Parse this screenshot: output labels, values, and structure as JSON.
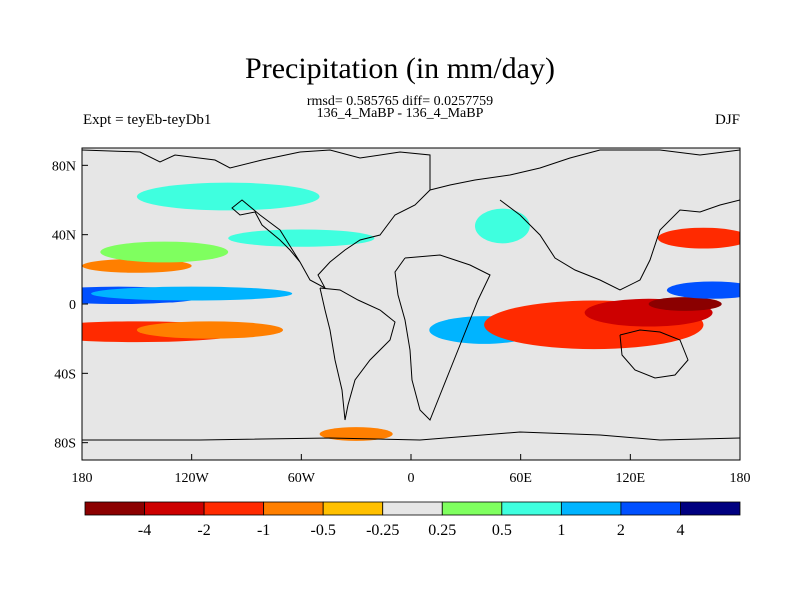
{
  "title": "Precipitation (in mm/day)",
  "stats": "rmsd= 0.585765 diff= 0.0257759",
  "comparison": "136_4_MaBP - 136_4_MaBP",
  "experiment": "Expt = teyEb-teyDb1",
  "season": "DJF",
  "colors": {
    "background_land": "#e6e6e6",
    "coast": "#000000"
  },
  "chart_data": {
    "type": "heatmap",
    "title": "Precipitation (in mm/day)",
    "x_ticks": [
      "180",
      "120W",
      "60W",
      "0",
      "60E",
      "120E",
      "180"
    ],
    "y_ticks": [
      "80N",
      "40N",
      "0",
      "40S",
      "80S"
    ],
    "x_range": [
      -180,
      180
    ],
    "y_range": [
      -90,
      90
    ],
    "colorbar": {
      "levels": [
        "-4",
        "-2",
        "-1",
        "-0.5",
        "-0.25",
        "0.25",
        "0.5",
        "1",
        "2",
        "4"
      ],
      "colors": [
        "#8b0000",
        "#cd0000",
        "#ff2a00",
        "#ff7f00",
        "#ffc000",
        "#e6e6e6",
        "#7fff5f",
        "#3fffdf",
        "#00b4ff",
        "#0050ff",
        "#000080"
      ]
    },
    "anomaly_regions": [
      {
        "lon": -160,
        "lat": 5,
        "w": 50,
        "h": 5,
        "level": 2
      },
      {
        "lon": -120,
        "lat": 6,
        "w": 55,
        "h": 4,
        "level": 1
      },
      {
        "lon": -150,
        "lat": -16,
        "w": 60,
        "h": 6,
        "level": -1
      },
      {
        "lon": -110,
        "lat": -15,
        "w": 40,
        "h": 5,
        "level": -0.5
      },
      {
        "lon": -150,
        "lat": 22,
        "w": 30,
        "h": 4,
        "level": -0.5
      },
      {
        "lon": -135,
        "lat": 30,
        "w": 35,
        "h": 6,
        "level": 0.25
      },
      {
        "lon": -60,
        "lat": 38,
        "w": 40,
        "h": 5,
        "level": 0.5
      },
      {
        "lon": 40,
        "lat": -15,
        "w": 30,
        "h": 8,
        "level": 1
      },
      {
        "lon": 100,
        "lat": -12,
        "w": 60,
        "h": 14,
        "level": -1
      },
      {
        "lon": 130,
        "lat": -5,
        "w": 35,
        "h": 8,
        "level": -2
      },
      {
        "lon": 150,
        "lat": 0,
        "w": 20,
        "h": 4,
        "level": -4
      },
      {
        "lon": 160,
        "lat": 38,
        "w": 25,
        "h": 6,
        "level": -1
      },
      {
        "lon": 165,
        "lat": 8,
        "w": 25,
        "h": 5,
        "level": 2
      },
      {
        "lon": -100,
        "lat": 62,
        "w": 50,
        "h": 8,
        "level": 0.5
      },
      {
        "lon": 50,
        "lat": 45,
        "w": 15,
        "h": 10,
        "level": 0.5
      },
      {
        "lon": -30,
        "lat": -75,
        "w": 20,
        "h": 4,
        "level": -0.5
      }
    ]
  }
}
